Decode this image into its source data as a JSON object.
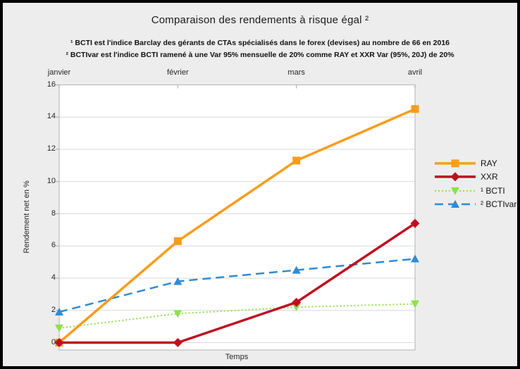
{
  "title": "Comparaison des rendements à risque égal ²",
  "footnotes": [
    "¹ BCTI est l'indice Barclay des gérants de CTAs spécialisés dans le forex (devises) au nombre de 66 en 2016",
    "² BCTIvar est l'indice BCTI ramené à une Var 95% mensuelle de 20% comme RAY et XXR Var (95%, 20J) de 20%"
  ],
  "style": {
    "background": "#EDEDED",
    "plot_background": "#FFFFFF",
    "grid_color": "#D9D9D9",
    "plot_border_color": "#BDBDBD",
    "tick_color": "#A6A6A6",
    "frame_color": "#000000"
  },
  "chart_data": {
    "type": "line",
    "x": [
      "janvier",
      "février",
      "mars",
      "avril"
    ],
    "x_axis_position": "top",
    "series": [
      {
        "name": "RAY",
        "values": [
          0,
          6.3,
          11.3,
          14.5
        ],
        "color": "#F99C1C",
        "marker": "square",
        "line_style": "solid"
      },
      {
        "name": "XXR",
        "values": [
          0,
          0,
          2.5,
          7.4
        ],
        "color": "#C00E1F",
        "marker": "diamond",
        "line_style": "solid"
      },
      {
        "name": "¹ BCTI",
        "values": [
          0.9,
          1.8,
          2.2,
          2.4
        ],
        "color": "#8FE14D",
        "marker": "triangle-down",
        "line_style": "dotted"
      },
      {
        "name": "² BCTIvar",
        "values": [
          1.9,
          3.8,
          4.5,
          5.2
        ],
        "color": "#2E8BD5",
        "marker": "triangle-up",
        "line_style": "dashed"
      }
    ],
    "xlabel": "Temps",
    "ylabel": "Rendement net en %",
    "ylim": [
      0,
      16
    ],
    "ytick_step": 2,
    "grid": true,
    "legend_position": "right"
  }
}
